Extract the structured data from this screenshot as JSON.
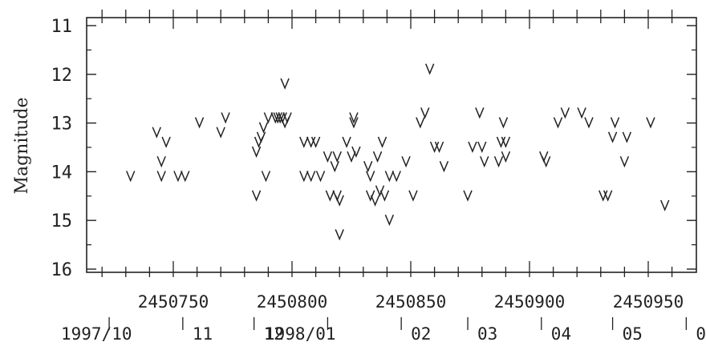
{
  "chart_data": {
    "type": "scatter",
    "marker": "V",
    "title": "",
    "ylabel": "Magnitude",
    "xlabel": "",
    "ylim": [
      16,
      11
    ],
    "y_inverted": true,
    "xlim": [
      2450702,
      2450980
    ],
    "y_ticks": [
      "11",
      "12",
      "13",
      "14",
      "15",
      "16"
    ],
    "x_ticks": [
      {
        "value": 2450750,
        "label": "2450750"
      },
      {
        "value": 2450800,
        "label": "2450800"
      },
      {
        "value": 2450850,
        "label": "2450850"
      },
      {
        "value": 2450900,
        "label": "2450900"
      },
      {
        "value": 2450950,
        "label": "2450950"
      }
    ],
    "month_ticks": [
      {
        "value": 2450723,
        "label": "1997/10"
      },
      {
        "value": 2450754,
        "label": "11"
      },
      {
        "value": 2450784,
        "label": "12"
      },
      {
        "value": 2450815,
        "label": "1998/01"
      },
      {
        "value": 2450846,
        "label": "02"
      },
      {
        "value": 2450874,
        "label": "03"
      },
      {
        "value": 2450905,
        "label": "04"
      },
      {
        "value": 2450935,
        "label": "05"
      },
      {
        "value": 2450966,
        "label": "06"
      }
    ],
    "points": [
      [
        2450732,
        14.1
      ],
      [
        2450743,
        13.2
      ],
      [
        2450745,
        13.8
      ],
      [
        2450745,
        14.1
      ],
      [
        2450747,
        13.4
      ],
      [
        2450752,
        14.1
      ],
      [
        2450755,
        14.1
      ],
      [
        2450761,
        13.0
      ],
      [
        2450770,
        13.2
      ],
      [
        2450772,
        12.9
      ],
      [
        2450785,
        13.6
      ],
      [
        2450785,
        14.5
      ],
      [
        2450786,
        13.4
      ],
      [
        2450787,
        13.3
      ],
      [
        2450788,
        13.1
      ],
      [
        2450789,
        14.1
      ],
      [
        2450790,
        12.9
      ],
      [
        2450793,
        12.9
      ],
      [
        2450794,
        12.9
      ],
      [
        2450795,
        12.9
      ],
      [
        2450796,
        12.9
      ],
      [
        2450797,
        13.0
      ],
      [
        2450797,
        12.2
      ],
      [
        2450798,
        12.9
      ],
      [
        2450805,
        13.4
      ],
      [
        2450805,
        14.1
      ],
      [
        2450808,
        13.4
      ],
      [
        2450808,
        14.1
      ],
      [
        2450810,
        13.4
      ],
      [
        2450812,
        14.1
      ],
      [
        2450815,
        13.7
      ],
      [
        2450816,
        14.5
      ],
      [
        2450818,
        13.9
      ],
      [
        2450819,
        13.7
      ],
      [
        2450819,
        14.5
      ],
      [
        2450820,
        14.6
      ],
      [
        2450820,
        15.3
      ],
      [
        2450823,
        13.4
      ],
      [
        2450825,
        13.7
      ],
      [
        2450826,
        12.9
      ],
      [
        2450826,
        13.0
      ],
      [
        2450827,
        13.6
      ],
      [
        2450832,
        13.9
      ],
      [
        2450833,
        14.1
      ],
      [
        2450833,
        14.5
      ],
      [
        2450835,
        14.6
      ],
      [
        2450836,
        13.7
      ],
      [
        2450837,
        14.4
      ],
      [
        2450838,
        13.4
      ],
      [
        2450839,
        14.5
      ],
      [
        2450841,
        14.1
      ],
      [
        2450841,
        15.0
      ],
      [
        2450844,
        14.1
      ],
      [
        2450848,
        13.8
      ],
      [
        2450851,
        14.5
      ],
      [
        2450854,
        13.0
      ],
      [
        2450856,
        12.8
      ],
      [
        2450858,
        11.9
      ],
      [
        2450860,
        13.5
      ],
      [
        2450862,
        13.5
      ],
      [
        2450864,
        13.9
      ],
      [
        2450874,
        14.5
      ],
      [
        2450876,
        13.5
      ],
      [
        2450879,
        12.8
      ],
      [
        2450880,
        13.5
      ],
      [
        2450881,
        13.8
      ],
      [
        2450887,
        13.8
      ],
      [
        2450888,
        13.4
      ],
      [
        2450889,
        13.0
      ],
      [
        2450890,
        13.4
      ],
      [
        2450890,
        13.7
      ],
      [
        2450906,
        13.7
      ],
      [
        2450907,
        13.8
      ],
      [
        2450912,
        13.0
      ],
      [
        2450915,
        12.8
      ],
      [
        2450922,
        12.8
      ],
      [
        2450925,
        13.0
      ],
      [
        2450931,
        14.5
      ],
      [
        2450933,
        14.5
      ],
      [
        2450935,
        13.3
      ],
      [
        2450936,
        13.0
      ],
      [
        2450940,
        13.8
      ],
      [
        2450941,
        13.3
      ],
      [
        2450951,
        13.0
      ],
      [
        2450957,
        14.7
      ]
    ]
  }
}
